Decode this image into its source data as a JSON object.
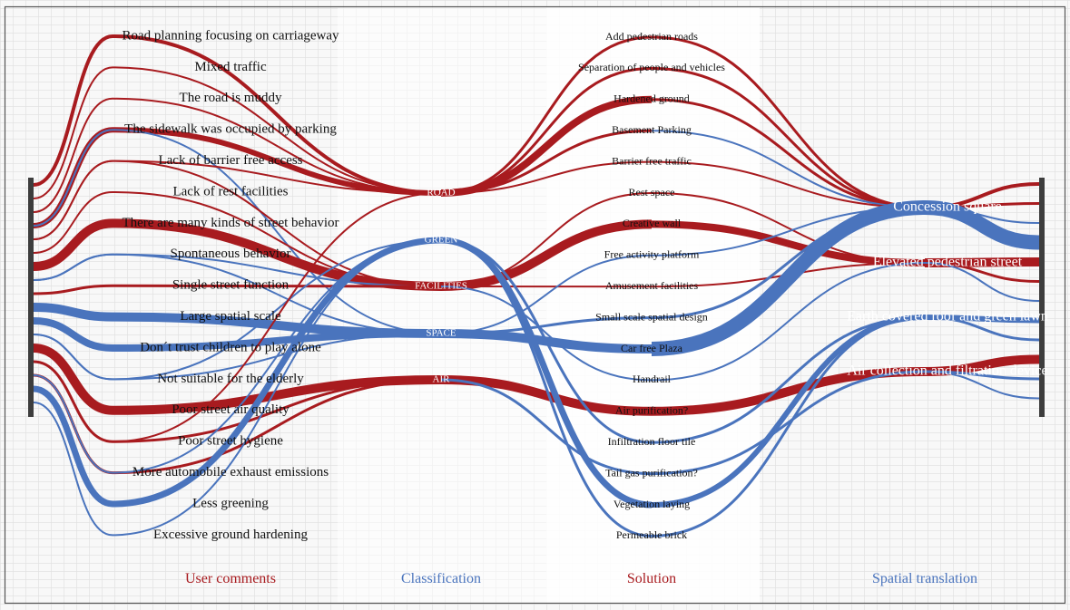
{
  "colors": {
    "red": "#a81b1f",
    "blue": "#4a74bd",
    "bar": "#3d3d3d",
    "grid_line": "#dcdcdc",
    "panel_bg": "#f6f6f6",
    "panel_bg_alt": "#ffffff"
  },
  "columns": [
    {
      "id": "comments",
      "label": "User comments",
      "color": "red"
    },
    {
      "id": "classification",
      "label": "Classification",
      "color": "blue"
    },
    {
      "id": "solution",
      "label": "Solution",
      "color": "red"
    },
    {
      "id": "spatial",
      "label": "Spatial translation",
      "color": "blue"
    }
  ],
  "comments": [
    "Road planning focusing on carriageway",
    "Mixed traffic",
    "The road is muddy",
    "The sidewalk was occupied by parking",
    "Lack of barrier free access",
    "Lack of rest facilities",
    "There are many kinds of street behavior",
    "Spontaneous behavior",
    "Single street function",
    "Large spatial scale",
    "Don´t trust children to play alone",
    "Not suitable for the elderly",
    "Poor street air quality",
    "Poor street hygiene",
    "More automobile exhaust emissions",
    "Less greening",
    "Excessive ground hardening"
  ],
  "classifications": [
    "ROAD",
    "GREEN",
    "FACILITIES",
    "SPACE",
    "AIR"
  ],
  "solutions": [
    "Add pedestrian roads",
    "Separation of people and vehicles",
    "Hardened ground",
    "Basement Parking",
    "Barrier free traffic",
    "Rest space",
    "Creative wall",
    "Free activity platform",
    "Amusement facilities",
    "Small scale spatial design",
    "Car free Plaza",
    "Handrail",
    "Air purification?",
    "Infiltration floor tile",
    "Tail gas purification?",
    "Vegetation laying",
    "Permeable brick"
  ],
  "spatial": [
    "Concession square",
    "Elevated pedestrian street",
    "Earth covered roof and green lawn",
    "Air collection and filtration device"
  ],
  "links_comment_class": [
    {
      "from": 0,
      "to": 0,
      "color": "red",
      "weight": 4
    },
    {
      "from": 1,
      "to": 0,
      "color": "red",
      "weight": 2
    },
    {
      "from": 2,
      "to": 0,
      "color": "red",
      "weight": 2
    },
    {
      "from": 3,
      "to": 0,
      "color": "red",
      "weight": 6
    },
    {
      "from": 3,
      "to": 3,
      "color": "blue",
      "weight": 2
    },
    {
      "from": 4,
      "to": 0,
      "color": "red",
      "weight": 2
    },
    {
      "from": 4,
      "to": 2,
      "color": "red",
      "weight": 2
    },
    {
      "from": 5,
      "to": 2,
      "color": "red",
      "weight": 2
    },
    {
      "from": 6,
      "to": 2,
      "color": "red",
      "weight": 10
    },
    {
      "from": 7,
      "to": 2,
      "color": "blue",
      "weight": 2
    },
    {
      "from": 7,
      "to": 3,
      "color": "blue",
      "weight": 2
    },
    {
      "from": 8,
      "to": 2,
      "color": "red",
      "weight": 3
    },
    {
      "from": 9,
      "to": 3,
      "color": "blue",
      "weight": 10
    },
    {
      "from": 10,
      "to": 3,
      "color": "blue",
      "weight": 8
    },
    {
      "from": 11,
      "to": 3,
      "color": "blue",
      "weight": 2
    },
    {
      "from": 11,
      "to": 1,
      "color": "blue",
      "weight": 2
    },
    {
      "from": 12,
      "to": 4,
      "color": "red",
      "weight": 10
    },
    {
      "from": 13,
      "to": 0,
      "color": "red",
      "weight": 2
    },
    {
      "from": 13,
      "to": 4,
      "color": "red",
      "weight": 3
    },
    {
      "from": 14,
      "to": 4,
      "color": "red",
      "weight": 3
    },
    {
      "from": 14,
      "to": 1,
      "color": "blue",
      "weight": 2
    },
    {
      "from": 15,
      "to": 1,
      "color": "blue",
      "weight": 7
    },
    {
      "from": 16,
      "to": 1,
      "color": "blue",
      "weight": 2
    }
  ],
  "links_class_solution": [
    {
      "from": 0,
      "to": 0,
      "color": "red",
      "weight": 3
    },
    {
      "from": 0,
      "to": 1,
      "color": "red",
      "weight": 3
    },
    {
      "from": 0,
      "to": 2,
      "color": "red",
      "weight": 8
    },
    {
      "from": 0,
      "to": 3,
      "color": "red",
      "weight": 3
    },
    {
      "from": 0,
      "to": 4,
      "color": "red",
      "weight": 2
    },
    {
      "from": 2,
      "to": 5,
      "color": "red",
      "weight": 2
    },
    {
      "from": 2,
      "to": 6,
      "color": "red",
      "weight": 10
    },
    {
      "from": 2,
      "to": 8,
      "color": "red",
      "weight": 2
    },
    {
      "from": 2,
      "to": 11,
      "color": "blue",
      "weight": 2
    },
    {
      "from": 3,
      "to": 7,
      "color": "blue",
      "weight": 2
    },
    {
      "from": 3,
      "to": 9,
      "color": "blue",
      "weight": 3
    },
    {
      "from": 3,
      "to": 10,
      "color": "blue",
      "weight": 10
    },
    {
      "from": 4,
      "to": 12,
      "color": "red",
      "weight": 10
    },
    {
      "from": 4,
      "to": 14,
      "color": "blue",
      "weight": 3
    },
    {
      "from": 1,
      "to": 13,
      "color": "blue",
      "weight": 3
    },
    {
      "from": 1,
      "to": 15,
      "color": "blue",
      "weight": 7
    },
    {
      "from": 1,
      "to": 16,
      "color": "blue",
      "weight": 3
    }
  ],
  "links_solution_spatial": [
    {
      "from": 0,
      "to": 0,
      "color": "red",
      "weight": 3
    },
    {
      "from": 1,
      "to": 0,
      "color": "red",
      "weight": 3
    },
    {
      "from": 2,
      "to": 0,
      "color": "red",
      "weight": 3
    },
    {
      "from": 3,
      "to": 0,
      "color": "blue",
      "weight": 2
    },
    {
      "from": 4,
      "to": 0,
      "color": "red",
      "weight": 2
    },
    {
      "from": 5,
      "to": 1,
      "color": "red",
      "weight": 2
    },
    {
      "from": 6,
      "to": 1,
      "color": "red",
      "weight": 8
    },
    {
      "from": 7,
      "to": 0,
      "color": "blue",
      "weight": 2
    },
    {
      "from": 8,
      "to": 1,
      "color": "red",
      "weight": 2
    },
    {
      "from": 9,
      "to": 0,
      "color": "blue",
      "weight": 3
    },
    {
      "from": 10,
      "to": 0,
      "color": "blue",
      "weight": 16
    },
    {
      "from": 11,
      "to": 1,
      "color": "blue",
      "weight": 2
    },
    {
      "from": 12,
      "to": 3,
      "color": "red",
      "weight": 10
    },
    {
      "from": 13,
      "to": 2,
      "color": "blue",
      "weight": 3
    },
    {
      "from": 14,
      "to": 3,
      "color": "blue",
      "weight": 3
    },
    {
      "from": 15,
      "to": 2,
      "color": "blue",
      "weight": 6
    },
    {
      "from": 16,
      "to": 2,
      "color": "blue",
      "weight": 3
    }
  ],
  "links_spatial_end": [
    {
      "from": 0,
      "color": "red",
      "weight": 4
    },
    {
      "from": 0,
      "color": "red",
      "weight": 3
    },
    {
      "from": 0,
      "color": "blue",
      "weight": 2
    },
    {
      "from": 0,
      "color": "blue",
      "weight": 16
    },
    {
      "from": 1,
      "color": "red",
      "weight": 10
    },
    {
      "from": 1,
      "color": "red",
      "weight": 3
    },
    {
      "from": 1,
      "color": "blue",
      "weight": 2
    },
    {
      "from": 2,
      "color": "blue",
      "weight": 6
    },
    {
      "from": 2,
      "color": "blue",
      "weight": 3
    },
    {
      "from": 3,
      "color": "red",
      "weight": 10
    },
    {
      "from": 3,
      "color": "blue",
      "weight": 3
    },
    {
      "from": 3,
      "color": "blue",
      "weight": 2
    }
  ]
}
